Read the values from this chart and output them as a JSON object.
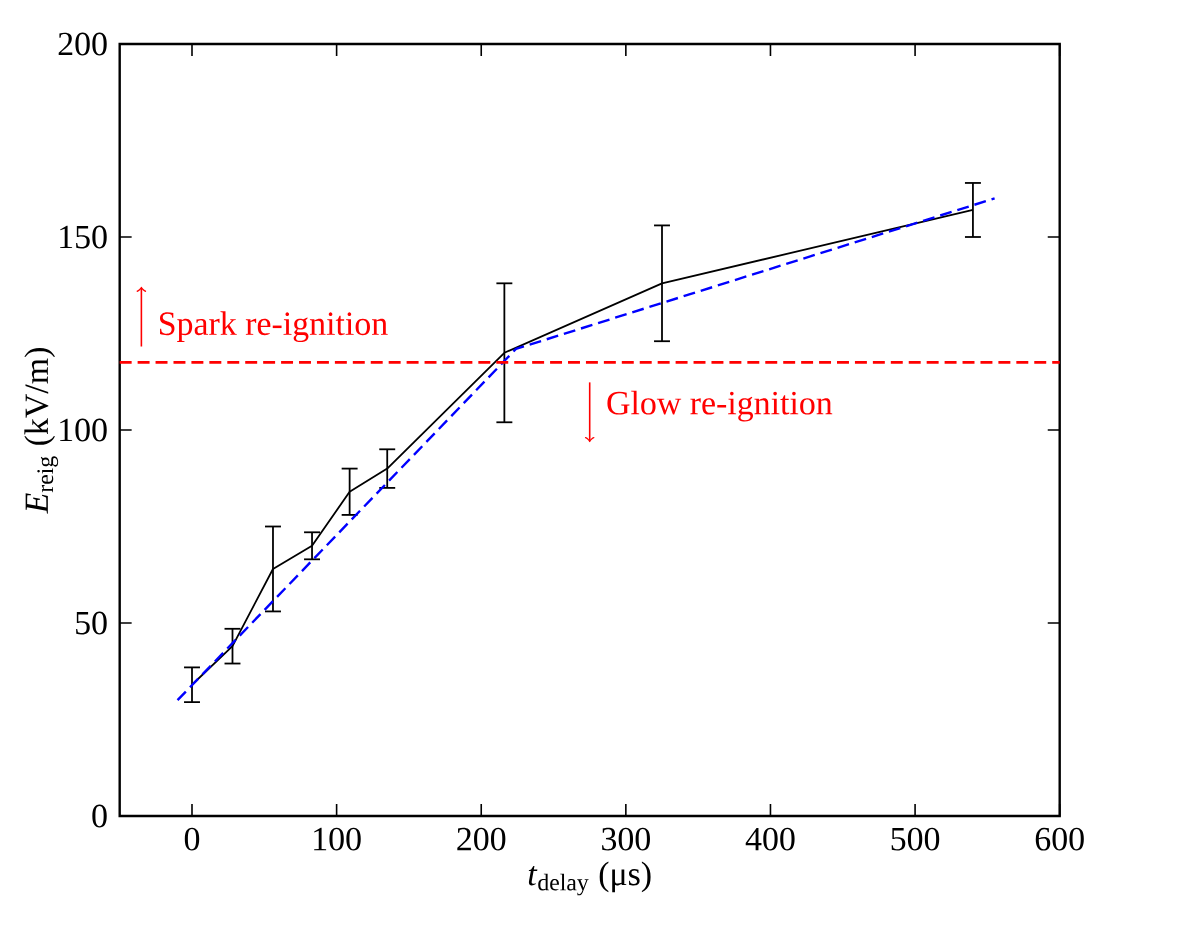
{
  "chart_data": {
    "type": "line",
    "xlabel": "*t*$_{delay}$ (μs)",
    "ylabel": "*E*$_{reig}$ (kV/m)",
    "xlim": [
      -50,
      600
    ],
    "xticks": [
      0,
      100,
      200,
      300,
      400,
      500,
      600
    ],
    "ylim": [
      0,
      200
    ],
    "yticks": [
      0,
      50,
      100,
      150,
      200
    ],
    "grid": false,
    "marker": "none",
    "series": [
      {
        "color": "#000000",
        "line_style": "solid",
        "x": [
          0,
          28,
          56,
          83,
          109,
          135,
          216,
          325,
          540
        ],
        "values": [
          34,
          44,
          64,
          70,
          84,
          90,
          120,
          138,
          157
        ],
        "errors": [
          4.5,
          4.5,
          11,
          3.5,
          6,
          5,
          18,
          15,
          7
        ]
      },
      {
        "color": "#0000ff",
        "line_style": "dashed",
        "x": [
          -10,
          224,
          555
        ],
        "values": [
          30,
          121,
          160
        ]
      }
    ],
    "ref_lines": [
      {
        "axis": "y",
        "value": 117.5,
        "color": "#ff0000",
        "line_style": "dashed"
      }
    ],
    "annotations": [
      "Spark re-ignition",
      "Glow re-ignition"
    ]
  }
}
